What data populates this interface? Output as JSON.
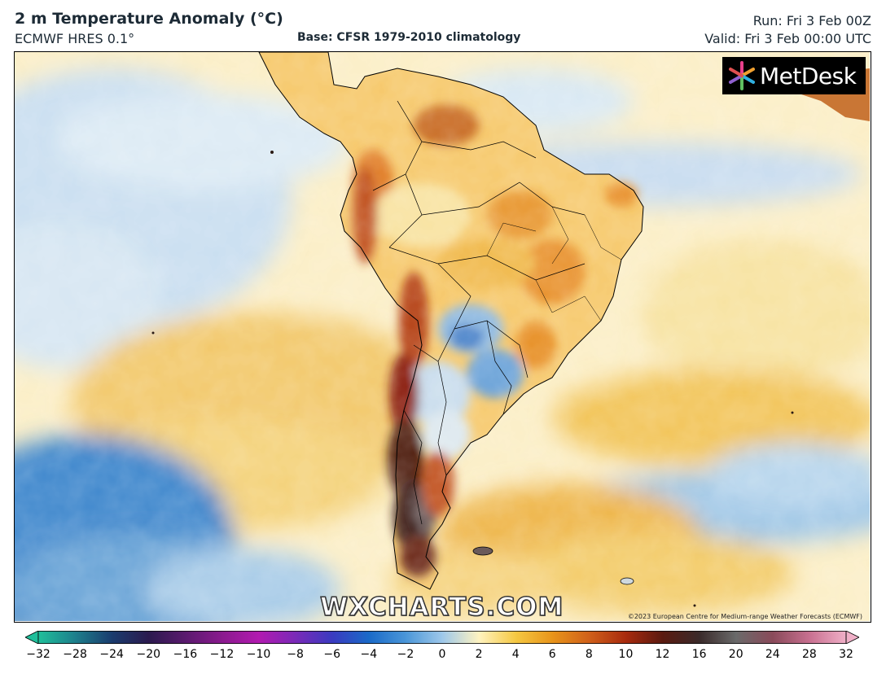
{
  "header": {
    "title": "2 m Temperature Anomaly (°C)",
    "model": "ECMWF HRES 0.1°",
    "base": "Base: CFSR 1979-2010 climatology",
    "run": "Run: Fri 3 Feb 00Z",
    "valid": "Valid: Fri 3 Feb 00:00 UTC"
  },
  "map": {
    "region": "South America",
    "logo_text": "MetDesk",
    "watermark": "WXCHARTS.COM",
    "copyright": "©2023 European Centre for Medium-range Weather Forecasts (ECMWF)"
  },
  "colorbar": {
    "ticks": [
      "−32",
      "−28",
      "−24",
      "−20",
      "−16",
      "−12",
      "−10",
      "−8",
      "−6",
      "−4",
      "−2",
      "0",
      "2",
      "4",
      "6",
      "8",
      "10",
      "12",
      "16",
      "20",
      "24",
      "28",
      "32"
    ],
    "colors": [
      "#1fbf9a",
      "#1e7f8c",
      "#1a3c6e",
      "#2b1a4e",
      "#5a1a6e",
      "#8a1a8e",
      "#b21ab0",
      "#7a2ab8",
      "#3a3ac0",
      "#1a6ac8",
      "#4a96d8",
      "#9ec8ea",
      "#fff3c0",
      "#f5c842",
      "#e8941a",
      "#d0601a",
      "#a82a0e",
      "#5a1a10",
      "#3a2a2a",
      "#6a6a6a",
      "#8a4a5a",
      "#c87090",
      "#f0b0c8"
    ]
  }
}
